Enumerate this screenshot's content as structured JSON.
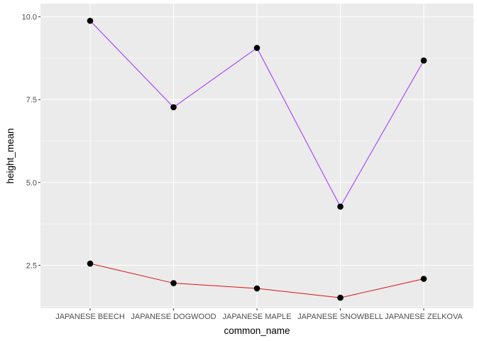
{
  "chart_data": {
    "type": "line",
    "title": "",
    "xlabel": "common_name",
    "ylabel": "height_mean",
    "categories": [
      "JAPANESE BEECH",
      "JAPANESE DOGWOOD",
      "JAPANESE MAPLE",
      "JAPANESE SNOWBELL",
      "JAPANESE ZELKOVA"
    ],
    "ylim": [
      1.2,
      10.4
    ],
    "yticks": [
      2.5,
      5.0,
      7.5,
      10.0
    ],
    "ytick_labels": [
      "2.5",
      "5.0",
      "7.5",
      "10.0"
    ],
    "grid": true,
    "legend": "none",
    "series": [
      {
        "values": [
          9.88,
          7.27,
          9.06,
          4.27,
          8.68
        ],
        "color": "#9b30ff"
      },
      {
        "values": [
          2.55,
          1.96,
          1.8,
          1.52,
          2.09
        ],
        "color": "#dd1111"
      }
    ],
    "point_color": "#000000",
    "panel_background": "#ebebeb",
    "grid_color": "#ffffff"
  }
}
